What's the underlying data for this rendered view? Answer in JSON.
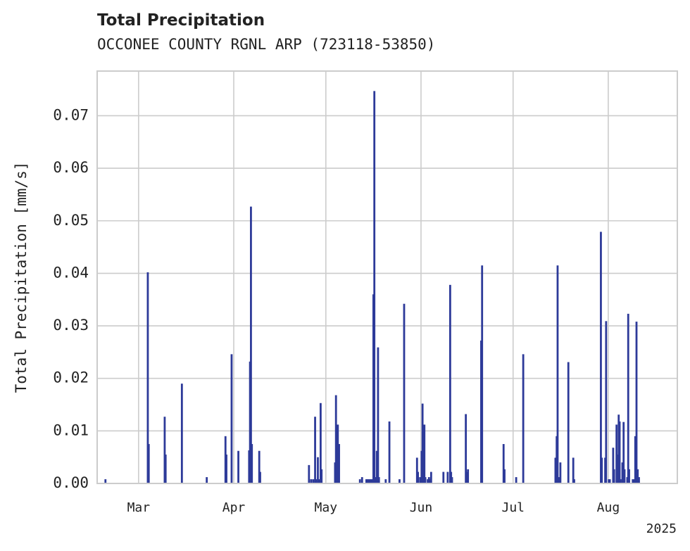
{
  "chart_data": {
    "type": "bar",
    "title": "Total Precipitation",
    "subtitle": "OCCONEE COUNTY RGNL ARP (723118-53850)",
    "ylabel": "Total Precipitation [mm/s]",
    "xlabel": "",
    "year_label": "2025",
    "x_units": "day of year 2025 (1 = Jan 1)",
    "xlim": [
      46.5,
      235.5
    ],
    "ylim": [
      0,
      0.0785
    ],
    "yticks": [
      "0.00",
      "0.01",
      "0.02",
      "0.03",
      "0.04",
      "0.05",
      "0.06",
      "0.07"
    ],
    "ytick_values": [
      0,
      0.01,
      0.02,
      0.03,
      0.04,
      0.05,
      0.06,
      0.07
    ],
    "xticks": [
      {
        "label": "Mar",
        "day": 60
      },
      {
        "label": "Apr",
        "day": 91
      },
      {
        "label": "May",
        "day": 121
      },
      {
        "label": "Jun",
        "day": 152
      },
      {
        "label": "Jul",
        "day": 182
      },
      {
        "label": "Aug",
        "day": 213
      }
    ],
    "grid": true,
    "bar_color": "#2d3a99",
    "values": [
      [
        49.2,
        0.0008
      ],
      [
        63.0,
        0.0402
      ],
      [
        63.3,
        0.0075
      ],
      [
        68.5,
        0.0127
      ],
      [
        68.8,
        0.0055
      ],
      [
        74.1,
        0.019
      ],
      [
        82.2,
        0.0012
      ],
      [
        88.3,
        0.009
      ],
      [
        88.6,
        0.0055
      ],
      [
        90.3,
        0.0246
      ],
      [
        92.5,
        0.0062
      ],
      [
        96.0,
        0.0063
      ],
      [
        96.3,
        0.0232
      ],
      [
        96.6,
        0.0527
      ],
      [
        96.9,
        0.0075
      ],
      [
        99.3,
        0.0062
      ],
      [
        99.6,
        0.0022
      ],
      [
        115.5,
        0.0035
      ],
      [
        116.2,
        0.0008
      ],
      [
        116.9,
        0.0008
      ],
      [
        117.5,
        0.0127
      ],
      [
        117.8,
        0.0008
      ],
      [
        118.4,
        0.005
      ],
      [
        118.7,
        0.0008
      ],
      [
        119.3,
        0.0153
      ],
      [
        119.6,
        0.0027
      ],
      [
        124.0,
        0.004
      ],
      [
        124.3,
        0.0168
      ],
      [
        124.9,
        0.0112
      ],
      [
        125.3,
        0.0075
      ],
      [
        132.1,
        0.0008
      ],
      [
        132.8,
        0.0012
      ],
      [
        134.2,
        0.0008
      ],
      [
        134.6,
        0.0008
      ],
      [
        135.0,
        0.0008
      ],
      [
        135.4,
        0.0008
      ],
      [
        135.8,
        0.0008
      ],
      [
        136.1,
        0.0008
      ],
      [
        136.5,
        0.036
      ],
      [
        136.8,
        0.0747
      ],
      [
        137.2,
        0.0012
      ],
      [
        137.6,
        0.0062
      ],
      [
        138.0,
        0.0259
      ],
      [
        138.3,
        0.0012
      ],
      [
        140.5,
        0.0008
      ],
      [
        141.7,
        0.0118
      ],
      [
        145.0,
        0.0008
      ],
      [
        146.5,
        0.0342
      ],
      [
        150.7,
        0.0049
      ],
      [
        151.0,
        0.0022
      ],
      [
        151.7,
        0.0012
      ],
      [
        152.2,
        0.0062
      ],
      [
        152.5,
        0.0152
      ],
      [
        152.8,
        0.0012
      ],
      [
        153.1,
        0.0112
      ],
      [
        153.4,
        0.0012
      ],
      [
        154.2,
        0.0008
      ],
      [
        154.6,
        0.0012
      ],
      [
        155.0,
        0.0008
      ],
      [
        155.3,
        0.0022
      ],
      [
        159.3,
        0.0022
      ],
      [
        160.7,
        0.0022
      ],
      [
        161.5,
        0.0378
      ],
      [
        161.8,
        0.0022
      ],
      [
        162.1,
        0.0012
      ],
      [
        166.6,
        0.0132
      ],
      [
        166.9,
        0.0022
      ],
      [
        167.3,
        0.0027
      ],
      [
        171.6,
        0.0272
      ],
      [
        171.9,
        0.0415
      ],
      [
        178.9,
        0.0075
      ],
      [
        179.2,
        0.0027
      ],
      [
        183.0,
        0.0012
      ],
      [
        185.3,
        0.0246
      ],
      [
        195.8,
        0.0049
      ],
      [
        196.2,
        0.009
      ],
      [
        196.5,
        0.0415
      ],
      [
        196.8,
        0.0012
      ],
      [
        197.4,
        0.004
      ],
      [
        200.0,
        0.0231
      ],
      [
        201.6,
        0.0049
      ],
      [
        201.9,
        0.0008
      ],
      [
        210.6,
        0.0479
      ],
      [
        210.9,
        0.0049
      ],
      [
        212.0,
        0.0049
      ],
      [
        212.3,
        0.0309
      ],
      [
        213.2,
        0.0008
      ],
      [
        213.5,
        0.0008
      ],
      [
        214.6,
        0.0068
      ],
      [
        214.9,
        0.0027
      ],
      [
        215.7,
        0.0112
      ],
      [
        216.0,
        0.0055
      ],
      [
        216.4,
        0.0131
      ],
      [
        216.7,
        0.0118
      ],
      [
        217.0,
        0.0008
      ],
      [
        217.6,
        0.004
      ],
      [
        218.0,
        0.0117
      ],
      [
        218.3,
        0.0027
      ],
      [
        219.2,
        0.0012
      ],
      [
        219.5,
        0.0323
      ],
      [
        219.8,
        0.0027
      ],
      [
        221.0,
        0.0008
      ],
      [
        221.4,
        0.0008
      ],
      [
        221.8,
        0.009
      ],
      [
        222.2,
        0.0308
      ],
      [
        222.6,
        0.0027
      ],
      [
        223.0,
        0.0012
      ]
    ]
  }
}
